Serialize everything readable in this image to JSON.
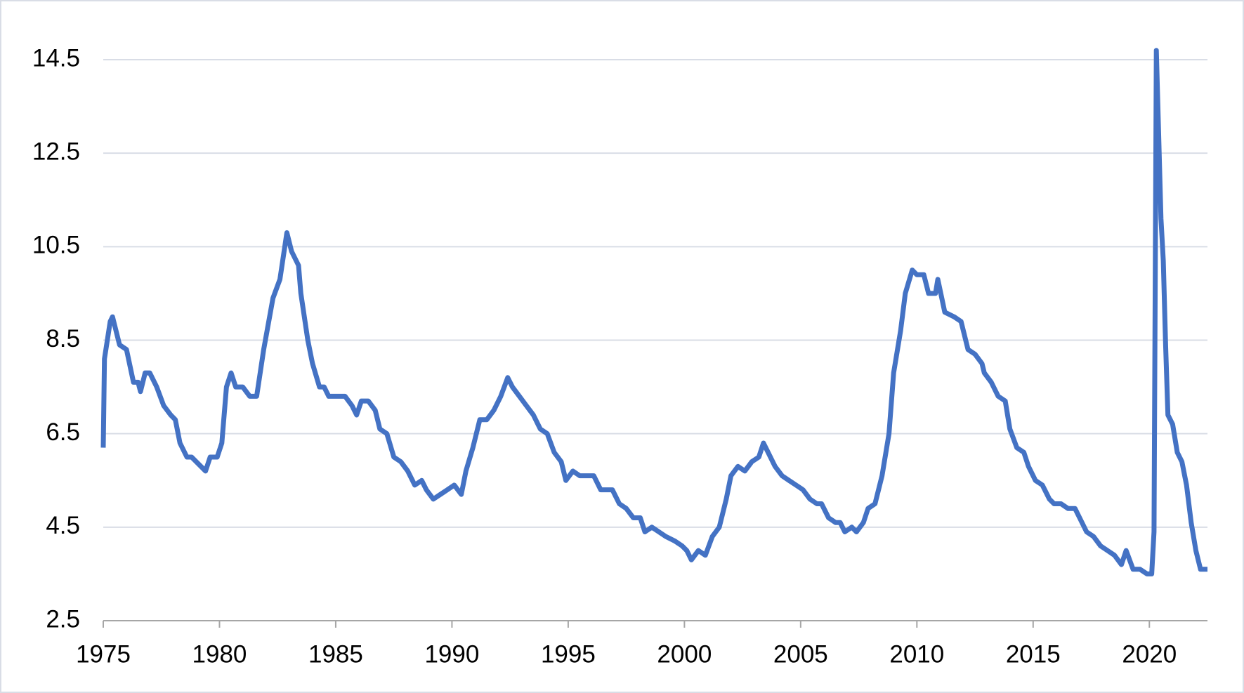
{
  "chart_data": {
    "type": "line",
    "color": "#4472c4",
    "grid": true,
    "xlim": [
      1975,
      2022.5
    ],
    "xticks": [
      1975,
      1980,
      1985,
      1990,
      1995,
      2000,
      2005,
      2010,
      2015,
      2020
    ],
    "ylim": [
      2.5,
      14.5
    ],
    "yticks": [
      2.5,
      4.5,
      6.5,
      8.5,
      10.5,
      12.5,
      14.5
    ],
    "x": [
      1975.0,
      1975.05,
      1975.3,
      1975.4,
      1975.7,
      1976.0,
      1976.3,
      1976.5,
      1976.6,
      1976.8,
      1977.0,
      1977.3,
      1977.6,
      1977.9,
      1978.1,
      1978.3,
      1978.6,
      1978.8,
      1979.0,
      1979.4,
      1979.6,
      1979.9,
      1980.1,
      1980.3,
      1980.5,
      1980.7,
      1981.0,
      1981.3,
      1981.6,
      1981.9,
      1982.3,
      1982.6,
      1982.9,
      1983.1,
      1983.4,
      1983.5,
      1983.8,
      1984.0,
      1984.3,
      1984.5,
      1984.7,
      1985.0,
      1985.4,
      1985.7,
      1985.9,
      1986.1,
      1986.4,
      1986.7,
      1986.9,
      1987.2,
      1987.5,
      1987.8,
      1988.1,
      1988.4,
      1988.7,
      1988.9,
      1989.2,
      1989.5,
      1989.8,
      1990.1,
      1990.4,
      1990.6,
      1990.9,
      1991.2,
      1991.5,
      1991.8,
      1992.1,
      1992.4,
      1992.6,
      1992.9,
      1993.2,
      1993.5,
      1993.8,
      1994.1,
      1994.4,
      1994.7,
      1994.9,
      1995.2,
      1995.5,
      1995.9,
      1996.1,
      1996.4,
      1996.6,
      1996.9,
      1997.2,
      1997.5,
      1997.8,
      1998.1,
      1998.3,
      1998.6,
      1998.9,
      1999.2,
      1999.6,
      1999.9,
      2000.1,
      2000.3,
      2000.6,
      2000.9,
      2001.2,
      2001.5,
      2001.8,
      2002.0,
      2002.3,
      2002.6,
      2002.9,
      2003.2,
      2003.4,
      2003.6,
      2003.9,
      2004.2,
      2004.5,
      2004.8,
      2005.1,
      2005.4,
      2005.7,
      2005.9,
      2006.2,
      2006.5,
      2006.7,
      2006.9,
      2007.2,
      2007.4,
      2007.7,
      2007.9,
      2008.2,
      2008.5,
      2008.8,
      2009.0,
      2009.3,
      2009.5,
      2009.8,
      2010.0,
      2010.3,
      2010.5,
      2010.8,
      2010.9,
      2011.2,
      2011.6,
      2011.9,
      2012.2,
      2012.5,
      2012.8,
      2012.9,
      2013.2,
      2013.5,
      2013.8,
      2014.0,
      2014.3,
      2014.6,
      2014.8,
      2015.1,
      2015.4,
      2015.7,
      2015.9,
      2016.2,
      2016.5,
      2016.8,
      2017.0,
      2017.3,
      2017.6,
      2017.9,
      2018.2,
      2018.5,
      2018.8,
      2019.0,
      2019.3,
      2019.6,
      2019.9,
      2020.1,
      2020.2,
      2020.3,
      2020.5,
      2020.6,
      2020.7,
      2020.8,
      2021.0,
      2021.2,
      2021.4,
      2021.6,
      2021.8,
      2022.0,
      2022.2,
      2022.5
    ],
    "values": [
      6.2,
      8.1,
      8.9,
      9.0,
      8.4,
      8.3,
      7.6,
      7.6,
      7.4,
      7.8,
      7.8,
      7.5,
      7.1,
      6.9,
      6.8,
      6.3,
      6.0,
      6.0,
      5.9,
      5.7,
      6.0,
      6.0,
      6.3,
      7.5,
      7.8,
      7.5,
      7.5,
      7.3,
      7.3,
      8.3,
      9.4,
      9.8,
      10.8,
      10.4,
      10.1,
      9.5,
      8.5,
      8.0,
      7.5,
      7.5,
      7.3,
      7.3,
      7.3,
      7.1,
      6.9,
      7.2,
      7.2,
      7.0,
      6.6,
      6.5,
      6.0,
      5.9,
      5.7,
      5.4,
      5.5,
      5.3,
      5.1,
      5.2,
      5.3,
      5.4,
      5.2,
      5.7,
      6.2,
      6.8,
      6.8,
      7.0,
      7.3,
      7.7,
      7.5,
      7.3,
      7.1,
      6.9,
      6.6,
      6.5,
      6.1,
      5.9,
      5.5,
      5.7,
      5.6,
      5.6,
      5.6,
      5.3,
      5.3,
      5.3,
      5.0,
      4.9,
      4.7,
      4.7,
      4.4,
      4.5,
      4.4,
      4.3,
      4.2,
      4.1,
      4.0,
      3.8,
      4.0,
      3.9,
      4.3,
      4.5,
      5.1,
      5.6,
      5.8,
      5.7,
      5.9,
      6.0,
      6.3,
      6.1,
      5.8,
      5.6,
      5.5,
      5.4,
      5.3,
      5.1,
      5.0,
      5.0,
      4.7,
      4.6,
      4.6,
      4.4,
      4.5,
      4.4,
      4.6,
      4.9,
      5.0,
      5.6,
      6.5,
      7.8,
      8.7,
      9.5,
      10.0,
      9.9,
      9.9,
      9.5,
      9.5,
      9.8,
      9.1,
      9.0,
      8.9,
      8.3,
      8.2,
      8.0,
      7.8,
      7.6,
      7.3,
      7.2,
      6.6,
      6.2,
      6.1,
      5.8,
      5.5,
      5.4,
      5.1,
      5.0,
      5.0,
      4.9,
      4.9,
      4.7,
      4.4,
      4.3,
      4.1,
      4.0,
      3.9,
      3.7,
      4.0,
      3.6,
      3.6,
      3.5,
      3.5,
      4.4,
      14.7,
      11.1,
      10.2,
      8.4,
      6.9,
      6.7,
      6.1,
      5.9,
      5.4,
      4.6,
      4.0,
      3.6,
      3.6
    ]
  }
}
